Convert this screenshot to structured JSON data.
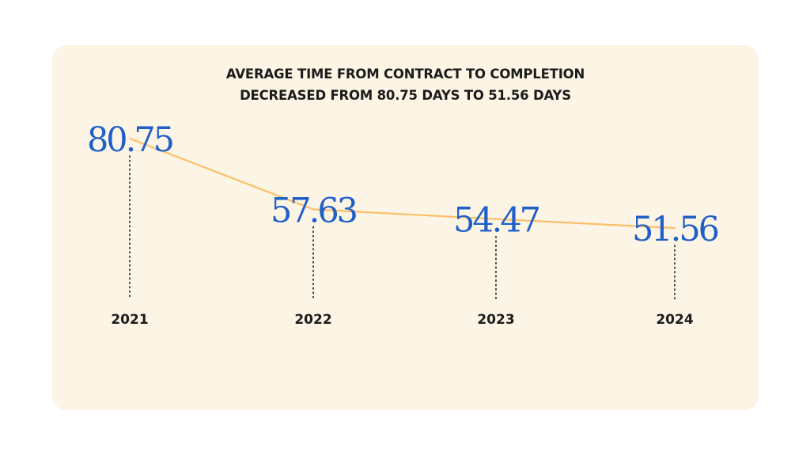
{
  "title": {
    "line1": "AVERAGE TIME FROM CONTRACT TO COMPLETION",
    "line2": "DECREASED FROM 80.75 DAYS TO 51.56 DAYS"
  },
  "colors": {
    "card_background": "#fcf5e5",
    "line": "#fbbf6b",
    "value_text": "#1f5fc8",
    "year_text": "#1c1c1c",
    "dotted_stem": "#1c1c1c"
  },
  "chart_data": {
    "type": "line",
    "title": "AVERAGE TIME FROM CONTRACT TO COMPLETION DECREASED FROM 80.75 DAYS TO 51.56 DAYS",
    "categories": [
      "2021",
      "2022",
      "2023",
      "2024"
    ],
    "values": [
      80.75,
      57.63,
      54.47,
      51.56
    ],
    "labels": [
      "80.75",
      "57.63",
      "54.47",
      "51.56"
    ],
    "xlabel": "",
    "ylabel": "",
    "grid": false,
    "legend": "none"
  }
}
